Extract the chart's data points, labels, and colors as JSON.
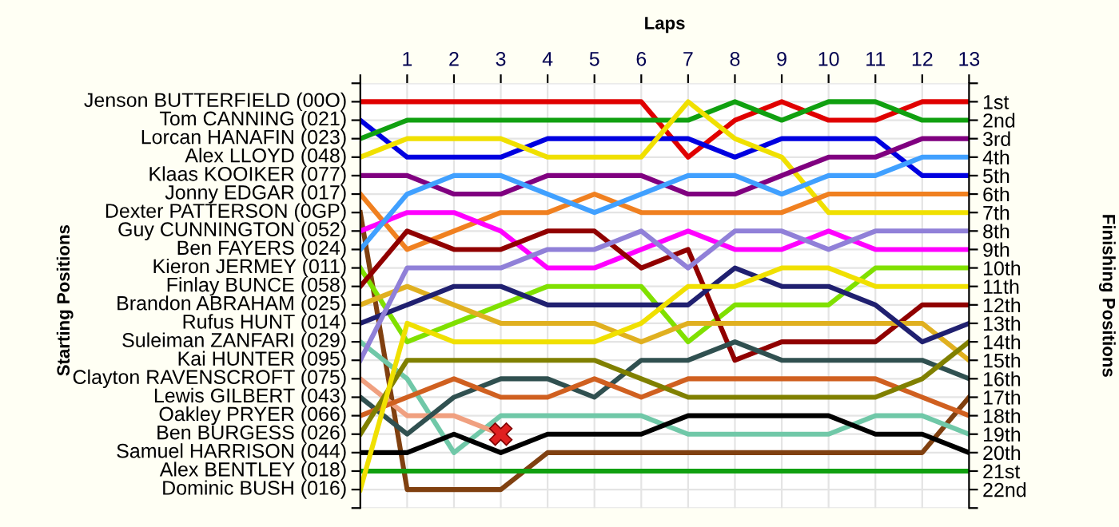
{
  "chart_data": {
    "type": "line",
    "xlabel": "Laps",
    "ylabel": "Finishing Positions",
    "xlim": [
      0,
      13
    ],
    "xticks": [
      {
        "value": 0,
        "label": null
      },
      1,
      2,
      3,
      4,
      5,
      6,
      7,
      8,
      9,
      10,
      11,
      12,
      13
    ],
    "ylim": [
      23,
      0
    ],
    "yticks": [
      {
        "value": 0,
        "label": null
      },
      {
        "value": 1,
        "label": "1st"
      },
      {
        "value": 2,
        "label": "2nd"
      },
      {
        "value": 3,
        "label": "3rd"
      },
      {
        "value": 4,
        "label": "4th"
      },
      {
        "value": 5,
        "label": "5th"
      },
      {
        "value": 6,
        "label": "6th"
      },
      {
        "value": 7,
        "label": "7th"
      },
      {
        "value": 8,
        "label": "8th"
      },
      {
        "value": 9,
        "label": "9th"
      },
      {
        "value": 10,
        "label": "10th"
      },
      {
        "value": 11,
        "label": "11th"
      },
      {
        "value": 12,
        "label": "12th"
      },
      {
        "value": 13,
        "label": "13th"
      },
      {
        "value": 14,
        "label": "14th"
      },
      {
        "value": 15,
        "label": "15th"
      },
      {
        "value": 16,
        "label": "16th"
      },
      {
        "value": 17,
        "label": "17th"
      },
      {
        "value": 18,
        "label": "18th"
      },
      {
        "value": 19,
        "label": "19th"
      },
      {
        "value": 20,
        "label": "20th"
      },
      {
        "value": 21,
        "label": "21st"
      },
      {
        "value": 22,
        "label": "22nd"
      },
      {
        "value": 23,
        "label": null
      }
    ],
    "annotations": [
      "Starting Positions",
      "Jenson BUTTERFIELD (00O)",
      "Tom CANNING (021)",
      "Lorcan HANAFIN (023)",
      "Alex LLOYD (048)",
      "Klaas KOOIKER (077)",
      "Jonny EDGAR (017)",
      "Dexter PATTERSON (0GP)",
      "Guy CUNNINGTON (052)",
      "Ben FAYERS (024)",
      "Kieron JERMEY (011)",
      "Finlay BUNCE (058)",
      "Brandon ABRAHAM (025)",
      "Rufus HUNT (014)",
      "Suleiman ZANFARI (029)",
      "Kai HUNTER (095)",
      "Clayton RAVENSCROFT (075)",
      "Lewis GILBERT (043)",
      "Oakley PRYER (066)",
      "Ben BURGESS (026)",
      "Samuel HARRISON (044)",
      "Alex BENTLEY (018)",
      "Dominic BUSH (016)"
    ],
    "x": [
      0,
      1,
      2,
      3,
      4,
      5,
      6,
      7,
      8,
      9,
      10,
      11,
      12,
      13
    ],
    "grid": true,
    "marker": "none",
    "line_style": "solid",
    "series": [
      {
        "color": "#e00000",
        "values": [
          1,
          1,
          1,
          1,
          1,
          1,
          1,
          4,
          2,
          1,
          2,
          2,
          1,
          1
        ]
      },
      {
        "color": "#0000e0",
        "values": [
          2,
          4,
          4,
          4,
          3,
          3,
          3,
          3,
          4,
          3,
          3,
          3,
          5,
          5
        ]
      },
      {
        "color": "#10a010",
        "values": [
          3,
          2,
          2,
          2,
          2,
          2,
          2,
          2,
          1,
          2,
          1,
          1,
          2,
          2
        ]
      },
      {
        "color": "#f0e000",
        "values": [
          4,
          3,
          3,
          3,
          4,
          4,
          4,
          1,
          3,
          4,
          7,
          7,
          7,
          7
        ]
      },
      {
        "color": "#800080",
        "values": [
          5,
          5,
          6,
          6,
          5,
          5,
          5,
          6,
          6,
          5,
          4,
          4,
          3,
          3
        ]
      },
      {
        "color": "#f08020",
        "values": [
          6,
          9,
          8,
          7,
          7,
          6,
          7,
          7,
          7,
          7,
          6,
          6,
          6,
          6
        ]
      },
      {
        "color": "#804010",
        "values": [
          7,
          22,
          22,
          22,
          20,
          20,
          20,
          20,
          20,
          20,
          20,
          20,
          20,
          17
        ]
      },
      {
        "color": "#ff00ff",
        "values": [
          8,
          7,
          7,
          8,
          10,
          10,
          9,
          8,
          9,
          9,
          8,
          9,
          9,
          9
        ]
      },
      {
        "color": "#40a0ff",
        "values": [
          9,
          6,
          5,
          5,
          6,
          7,
          6,
          5,
          5,
          6,
          5,
          5,
          4,
          4
        ]
      },
      {
        "color": "#80e000",
        "values": [
          10,
          14,
          13,
          12,
          11,
          11,
          11,
          14,
          12,
          12,
          12,
          10,
          10,
          10
        ]
      },
      {
        "color": "#900000",
        "values": [
          11,
          8,
          9,
          9,
          8,
          8,
          10,
          9,
          15,
          14,
          14,
          14,
          12,
          12
        ]
      },
      {
        "color": "#e0b020",
        "values": [
          12,
          11,
          12,
          13,
          13,
          13,
          14,
          13,
          13,
          13,
          13,
          13,
          13,
          15
        ]
      },
      {
        "color": "#202070",
        "values": [
          13,
          12,
          11,
          11,
          12,
          12,
          12,
          12,
          10,
          11,
          11,
          12,
          14,
          13
        ]
      },
      {
        "color": "#70c8a8",
        "values": [
          14,
          16,
          20,
          18,
          18,
          18,
          18,
          19,
          19,
          19,
          19,
          18,
          18,
          19
        ]
      },
      {
        "color": "#9080d8",
        "values": [
          15,
          10,
          10,
          10,
          9,
          9,
          8,
          10,
          8,
          8,
          9,
          8,
          8,
          8
        ]
      },
      {
        "color": "#f0a080",
        "values": [
          16,
          18,
          18,
          19,
          null,
          null,
          null,
          null,
          null,
          null,
          null,
          null,
          null,
          null
        ]
      },
      {
        "color": "#305050",
        "values": [
          17,
          19,
          17,
          16,
          16,
          17,
          15,
          15,
          14,
          15,
          15,
          15,
          15,
          16
        ]
      },
      {
        "color": "#d06020",
        "values": [
          18,
          17,
          16,
          17,
          17,
          16,
          17,
          16,
          16,
          16,
          16,
          16,
          17,
          18
        ]
      },
      {
        "color": "#808000",
        "values": [
          19,
          15,
          15,
          15,
          15,
          15,
          16,
          17,
          17,
          17,
          17,
          17,
          16,
          14
        ]
      },
      {
        "color": "#000000",
        "values": [
          20,
          20,
          19,
          20,
          19,
          19,
          19,
          18,
          18,
          18,
          18,
          19,
          19,
          20
        ]
      },
      {
        "color": "#10a010",
        "values": [
          21,
          21,
          21,
          21,
          21,
          21,
          21,
          21,
          21,
          21,
          21,
          21,
          21,
          21
        ]
      },
      {
        "color": "#f0e000",
        "values": [
          22,
          13,
          14,
          14,
          14,
          14,
          13,
          11,
          11,
          10,
          10,
          11,
          11,
          11
        ]
      },
      {
        "type": "scatter",
        "marker": "cross",
        "color": "#e02020",
        "x": [
          3
        ],
        "values": [
          19
        ]
      }
    ]
  }
}
